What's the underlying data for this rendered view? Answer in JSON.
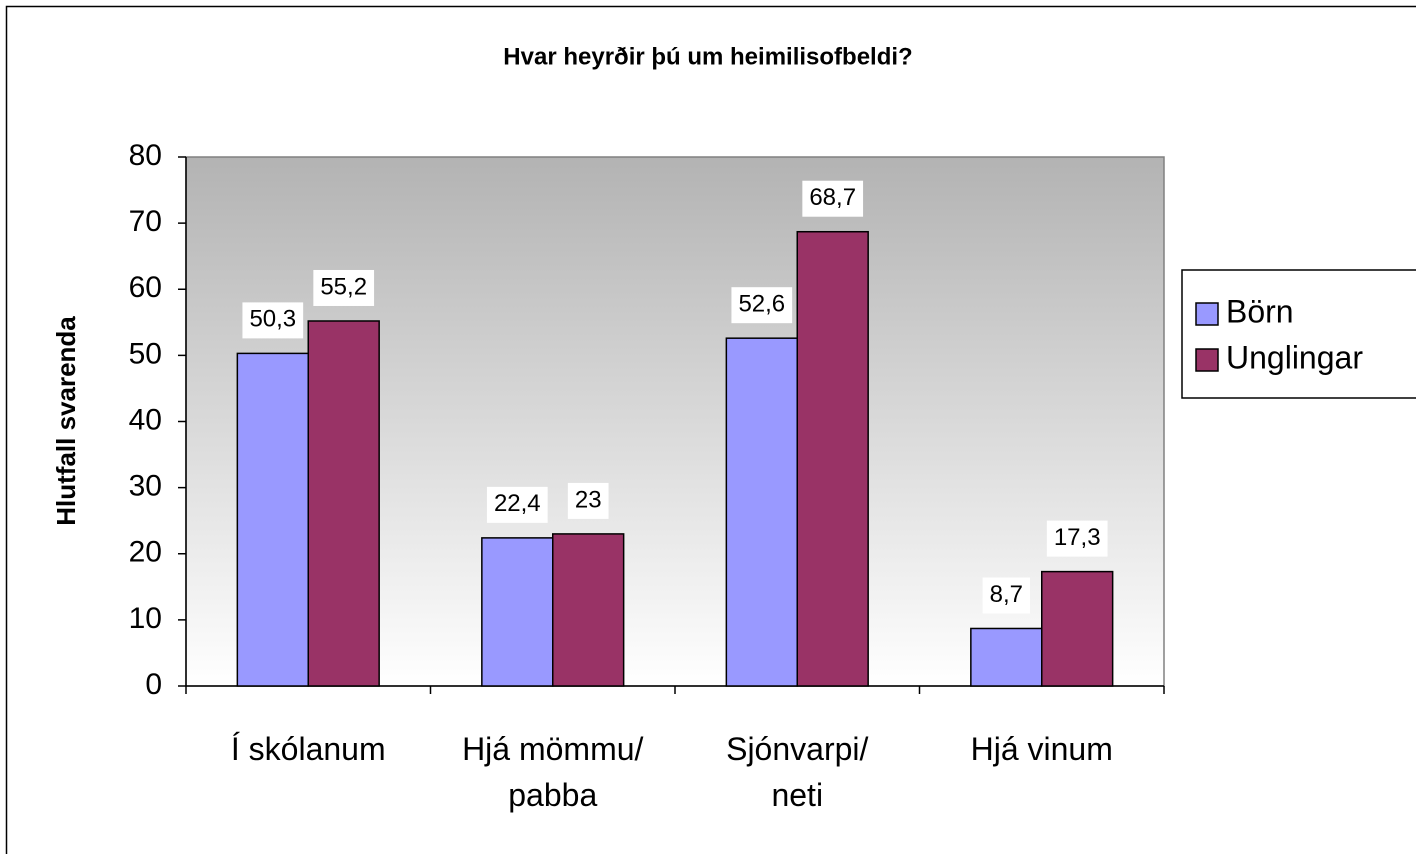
{
  "chart_data": {
    "type": "bar",
    "title": "Hvar heyrðir þú um heimilisofbeldi?",
    "y_label": "Hlutfall svarenda",
    "categories": [
      "Í skólanum",
      "Hjá mömmu/\npabba",
      "Sjónvarpi/\nneti",
      "Hjá vinum"
    ],
    "series": [
      {
        "name": "Börn",
        "color": "#9999ff",
        "values": [
          50.3,
          22.4,
          52.6,
          8.7
        ],
        "value_labels": [
          "50,3",
          "22,4",
          "52,6",
          "8,7"
        ]
      },
      {
        "name": "Unglingar",
        "color": "#993366",
        "values": [
          55.2,
          23,
          68.7,
          17.3
        ],
        "value_labels": [
          "55,2",
          "23",
          "68,7",
          "17,3"
        ]
      }
    ],
    "ylim": [
      0,
      80
    ],
    "yticks": [
      0,
      10,
      20,
      30,
      40,
      50,
      60,
      70,
      80
    ],
    "legend": "right"
  }
}
